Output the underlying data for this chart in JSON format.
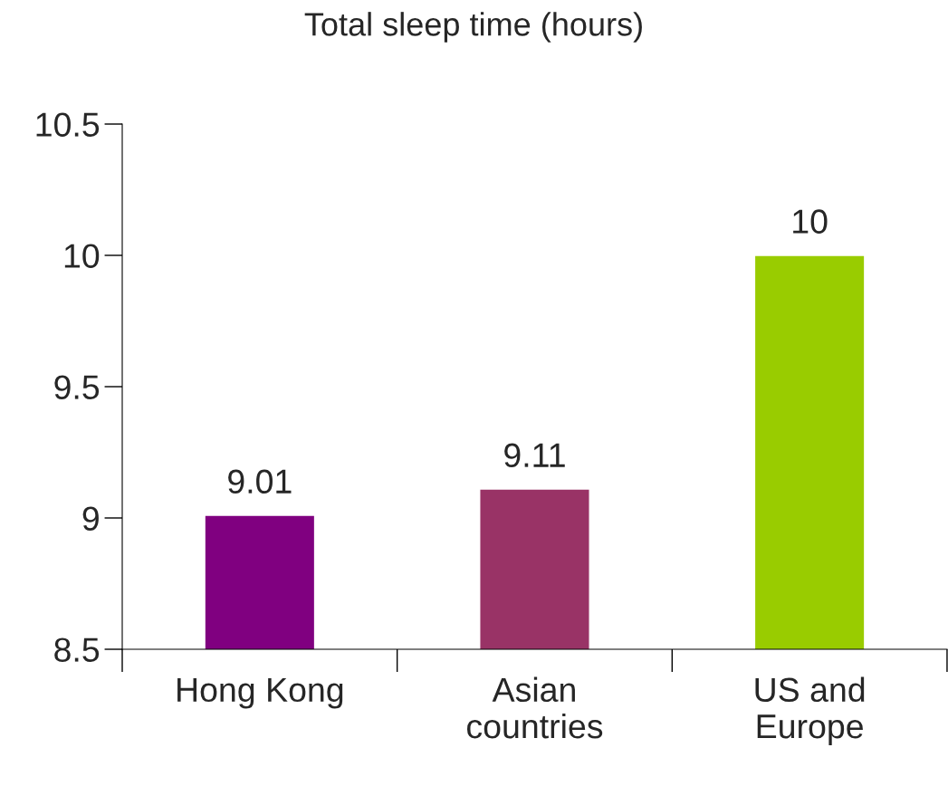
{
  "chart_data": {
    "type": "bar",
    "title": "Total sleep time (hours)",
    "categories": [
      "Hong Kong",
      "Asian\ncountries",
      "US and\nEurope"
    ],
    "values": [
      9.01,
      9.11,
      10
    ],
    "colors": [
      "#800080",
      "#993366",
      "#99cc00"
    ],
    "ylim": [
      8.5,
      10.5
    ],
    "yticks": [
      8.5,
      9,
      9.5,
      10,
      10.5
    ],
    "data_labels": true,
    "grid": false,
    "legend": false
  }
}
